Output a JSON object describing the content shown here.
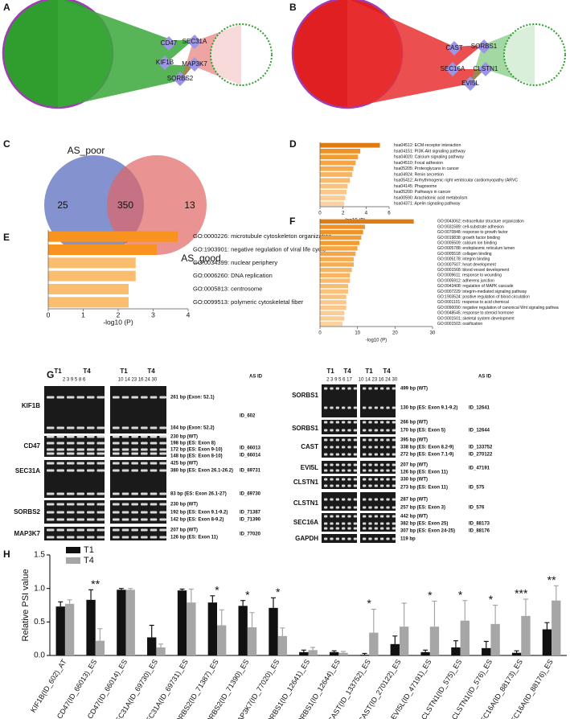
{
  "panel_labels": [
    "A",
    "B",
    "C",
    "D",
    "E",
    "F",
    "G",
    "H"
  ],
  "network_a": {
    "genes": [
      "CD47",
      "SEC31A",
      "KIF1B",
      "MAP3K7",
      "SORBS2"
    ]
  },
  "network_b": {
    "genes": [
      "CAST",
      "SORBS1",
      "SEC16A",
      "CLSTN1",
      "EVI5L"
    ]
  },
  "venn": {
    "sets": [
      "AS_poor",
      "AS_good"
    ],
    "counts": [
      "25",
      "350",
      "13"
    ]
  },
  "gels": {
    "left": {
      "headers": [
        "T1",
        "T4",
        "T1",
        "T4"
      ],
      "lanes": [
        "2 3 9 5 8 6",
        "10 14 23 16 24 30"
      ],
      "id_header": "AS ID",
      "rows": [
        {
          "gene": "KIF1B",
          "bands": [
            "261 bp (Exon: 52.1)",
            "164 bp (Exon: 52.2)"
          ],
          "ids": [
            "ID_602"
          ]
        },
        {
          "gene": "CD47",
          "bands": [
            "230 bp (WT)",
            "198 bp (ES: Exon 8)",
            "172 bp (ES: Exon 9-10)",
            "148 bp (ES: Exon 8-10)"
          ],
          "ids": [
            "ID_66013",
            "ID_66014"
          ]
        },
        {
          "gene": "SEC31A",
          "bands": [
            "425 bp (WT)",
            "380 bp (ES: Exon 26.1-26.2)",
            "83 bp (ES: Exon 26.1-27)"
          ],
          "ids": [
            "ID_69731",
            "ID_69730"
          ]
        },
        {
          "gene": "SORBS2",
          "bands": [
            "230 bp (WT)",
            "192 bp (ES: Exon 9.1-9.2)",
            "142 bp (ES: Exon 8-9.2)"
          ],
          "ids": [
            "ID_71387",
            "ID_71390"
          ]
        },
        {
          "gene": "MAP3K7",
          "bands": [
            "207 bp (WT)",
            "126 bp (ES: Exon 11)"
          ],
          "ids": [
            "ID_77020"
          ]
        }
      ]
    },
    "right": {
      "headers": [
        "T1",
        "T4",
        "T1",
        "T4"
      ],
      "lanes": [
        "2 3 9 5 6 17",
        "10 14 23 16 24 30"
      ],
      "id_header": "AS ID",
      "rows": [
        {
          "gene": "SORBS1",
          "bands": [
            "499 bp (WT)",
            "130 bp (ES: Exon 9.1-9.2)"
          ],
          "ids": [
            "ID_12641"
          ]
        },
        {
          "gene": "SORBS1",
          "bands": [
            "266 bp (WT)",
            "170 bp (ES: Exon 5)"
          ],
          "ids": [
            "ID_12644"
          ]
        },
        {
          "gene": "CAST",
          "bands": [
            "395 bp (WT)",
            "338 bp (ES: Exon 8.2-9)",
            "272 bp (ES: Exon 7.1-9)"
          ],
          "ids": [
            "ID_133752",
            "ID_270122"
          ]
        },
        {
          "gene": "EVI5L",
          "bands": [
            "207 bp (WT)",
            "126 bp (ES: Exon 11)"
          ],
          "ids": [
            "ID_47191"
          ]
        },
        {
          "gene": "CLSTN1",
          "bands": [
            "330 bp (WT)",
            "273 bp (ES: Exon 11)"
          ],
          "ids": [
            "ID_575"
          ]
        },
        {
          "gene": "CLSTN1",
          "bands": [
            "287 bp (WT)",
            "257 bp (ES: Exon 3)"
          ],
          "ids": [
            "ID_576"
          ]
        },
        {
          "gene": "SEC16A",
          "bands": [
            "442 bp (WT)",
            "382 bp (ES: Exon 25)",
            "307 bp (ES: Exon 24-25)"
          ],
          "ids": [
            "ID_88173",
            "ID_88176"
          ]
        },
        {
          "gene": "GAPDH",
          "bands": [
            "119 bp"
          ],
          "ids": []
        }
      ]
    }
  },
  "chart_data": [
    {
      "type": "barh",
      "xlabel": "-log10 (P)",
      "xlim": [
        0,
        6
      ],
      "xticks": [
        0,
        2,
        4,
        6
      ],
      "categories": [
        "hsa04512: ECM-receptor interaction",
        "hsa04151: PI3K-Akt signaling pathway",
        "hsa04020: Calcium signaling pathway",
        "hsa04510: Focal adhesion",
        "hsa05205: Proteoglycans in cancer",
        "hsa04924: Renin secretion",
        "hsa05412: Arrhythmogenic right ventricular cardiomyopathy (ARVC",
        "hsa04145: Phagosome",
        "hsa05200: Pathways in cancer",
        "hsa00590: Arachidonic acid metabolism",
        "hsa04371: Apelin signaling pathway"
      ],
      "values": [
        5.2,
        3.5,
        3.3,
        3.1,
        2.9,
        2.8,
        2.6,
        2.4,
        2.3,
        2.2,
        2.1
      ],
      "colors": [
        "#e07b10",
        "#f0922a",
        "#f39c32",
        "#f5a543",
        "#f6ad52",
        "#f7b562",
        "#f8bc70",
        "#f9c27d",
        "#fac88a",
        "#fbcd95",
        "#fbd2a0"
      ]
    },
    {
      "type": "barh",
      "xlabel": "-log10 (P)",
      "xlim": [
        0,
        4
      ],
      "xticks": [
        0,
        1,
        2,
        3,
        4
      ],
      "categories": [
        "GO:0000226: microtubule cytoskeleton organization",
        "GO:1903901: negative regulation of viral life cycle",
        "GO:0034399: nuclear periphery",
        "GO:0006260: DNA replication",
        "GO:0005813: centrosome",
        "GO:0099513: polymeric cytoskeletal fiber"
      ],
      "values": [
        3.7,
        3.1,
        2.5,
        2.5,
        2.3,
        2.3
      ],
      "colors": [
        "#f7931e",
        "#f7931e",
        "#fbbd6f",
        "#fbbd6f",
        "#fbbd6f",
        "#fbbd6f"
      ]
    },
    {
      "type": "barh",
      "xlabel": "-log10 (P)",
      "xlim": [
        0,
        30
      ],
      "xticks": [
        0,
        10,
        20,
        30
      ],
      "categories": [
        "GO:0043062: extracellular structure organization",
        "GO:0031589: cell-substrate adhesion",
        "GO:0070848: response to growth factor",
        "GO:0019838: growth factor binding",
        "GO:0005509: calcium ion binding",
        "GO:0005788: endoplasmic reticulum lumen",
        "GO:0005518: collagen binding",
        "GO:0005178: integrin binding",
        "GO:0007507: heart development",
        "GO:0001568: blood vessel development",
        "GO:0009611: response to wounding",
        "GO:0005912: adherens junction",
        "GO:0043408: regulation of MAPK cascade",
        "GO:0007229: integrin-mediated signaling pathway",
        "GO:1903524: positive regulation of blood circulation",
        "GO:0001101: response to acid chemical",
        "GO:0090090: negative regulation of canonical Wnt signaling pathwa",
        "GO:0048545: response to steroid hormone",
        "GO:0001501: skeletal system development",
        "GO:0001503: ossification"
      ],
      "values": [
        25,
        12,
        11.5,
        11,
        10.5,
        10,
        9.5,
        9,
        9,
        8.5,
        8,
        8,
        7.5,
        7.5,
        7,
        7,
        7,
        6.5,
        6.5,
        6
      ],
      "colors": [
        "#e07b10",
        "#f0922a",
        "#f0922a",
        "#f39c32",
        "#f39c32",
        "#f5a543",
        "#f5a543",
        "#f6ad52",
        "#f6ad52",
        "#f7b562",
        "#f7b562",
        "#f8bc70",
        "#f8bc70",
        "#f9c27d",
        "#f9c27d",
        "#fac88a",
        "#fac88a",
        "#fbcd95",
        "#fbcd95",
        "#fbd2a0"
      ]
    },
    {
      "type": "bar",
      "ylabel": "Relative PSI value",
      "ylim": [
        0,
        1.5
      ],
      "yticks": [
        {
          "value": 0,
          "label": "0.0"
        },
        {
          "value": 0.5,
          "label": "0.5"
        },
        {
          "value": 1,
          "label": "1.0"
        },
        {
          "value": 1.5,
          "label": "1.5"
        }
      ],
      "categories": [
        "KIF1B(ID_602)_AT",
        "CD47(ID_66013)_ES",
        "CD47(ID_66014)_ES",
        "SEC31A(ID_69730)_ES",
        "SEC31A(ID_69731)_ES",
        "SORBS2(ID_71387)_ES",
        "SORBS2(ID_71390)_ES",
        "MAP3K7(ID_77020)_ES",
        "SORBS1(ID_12641)_ES",
        "SORBS1(ID_12644)_ES",
        "CAST(ID_133752)_ES",
        "CAST(ID_270122)_ES",
        "EVI5L(ID_47191)_ES",
        "CLSTN1(ID_575)_ES",
        "CLSTN1(ID_576)_ES",
        "SEC16A(ID_88173)_ES",
        "SEC16A(ID_88176)_ES"
      ],
      "series": [
        {
          "name": "T1",
          "color": "#111111",
          "values": [
            0.73,
            0.83,
            0.98,
            0.27,
            0.97,
            0.79,
            0.74,
            0.71,
            0.05,
            0.05,
            0.01,
            0.17,
            0.05,
            0.12,
            0.11,
            0.04,
            0.39
          ],
          "errors": [
            0.07,
            0.15,
            0.02,
            0.18,
            0.02,
            0.1,
            0.08,
            0.15,
            0.03,
            0.02,
            0.02,
            0.12,
            0.03,
            0.1,
            0.1,
            0.03,
            0.1
          ]
        },
        {
          "name": "T4",
          "color": "#a6a6a6",
          "values": [
            0.77,
            0.22,
            0.98,
            0.12,
            0.79,
            0.45,
            0.42,
            0.29,
            0.08,
            0.04,
            0.34,
            0.43,
            0.43,
            0.52,
            0.47,
            0.59,
            0.82
          ],
          "errors": [
            0.06,
            0.18,
            0.02,
            0.05,
            0.2,
            0.23,
            0.22,
            0.12,
            0.04,
            0.02,
            0.35,
            0.35,
            0.38,
            0.3,
            0.28,
            0.25,
            0.22
          ]
        }
      ],
      "significance": [
        null,
        "**",
        null,
        null,
        null,
        "*",
        "*",
        "*",
        null,
        null,
        "*",
        null,
        "*",
        "*",
        "*",
        "***",
        "**"
      ]
    }
  ]
}
